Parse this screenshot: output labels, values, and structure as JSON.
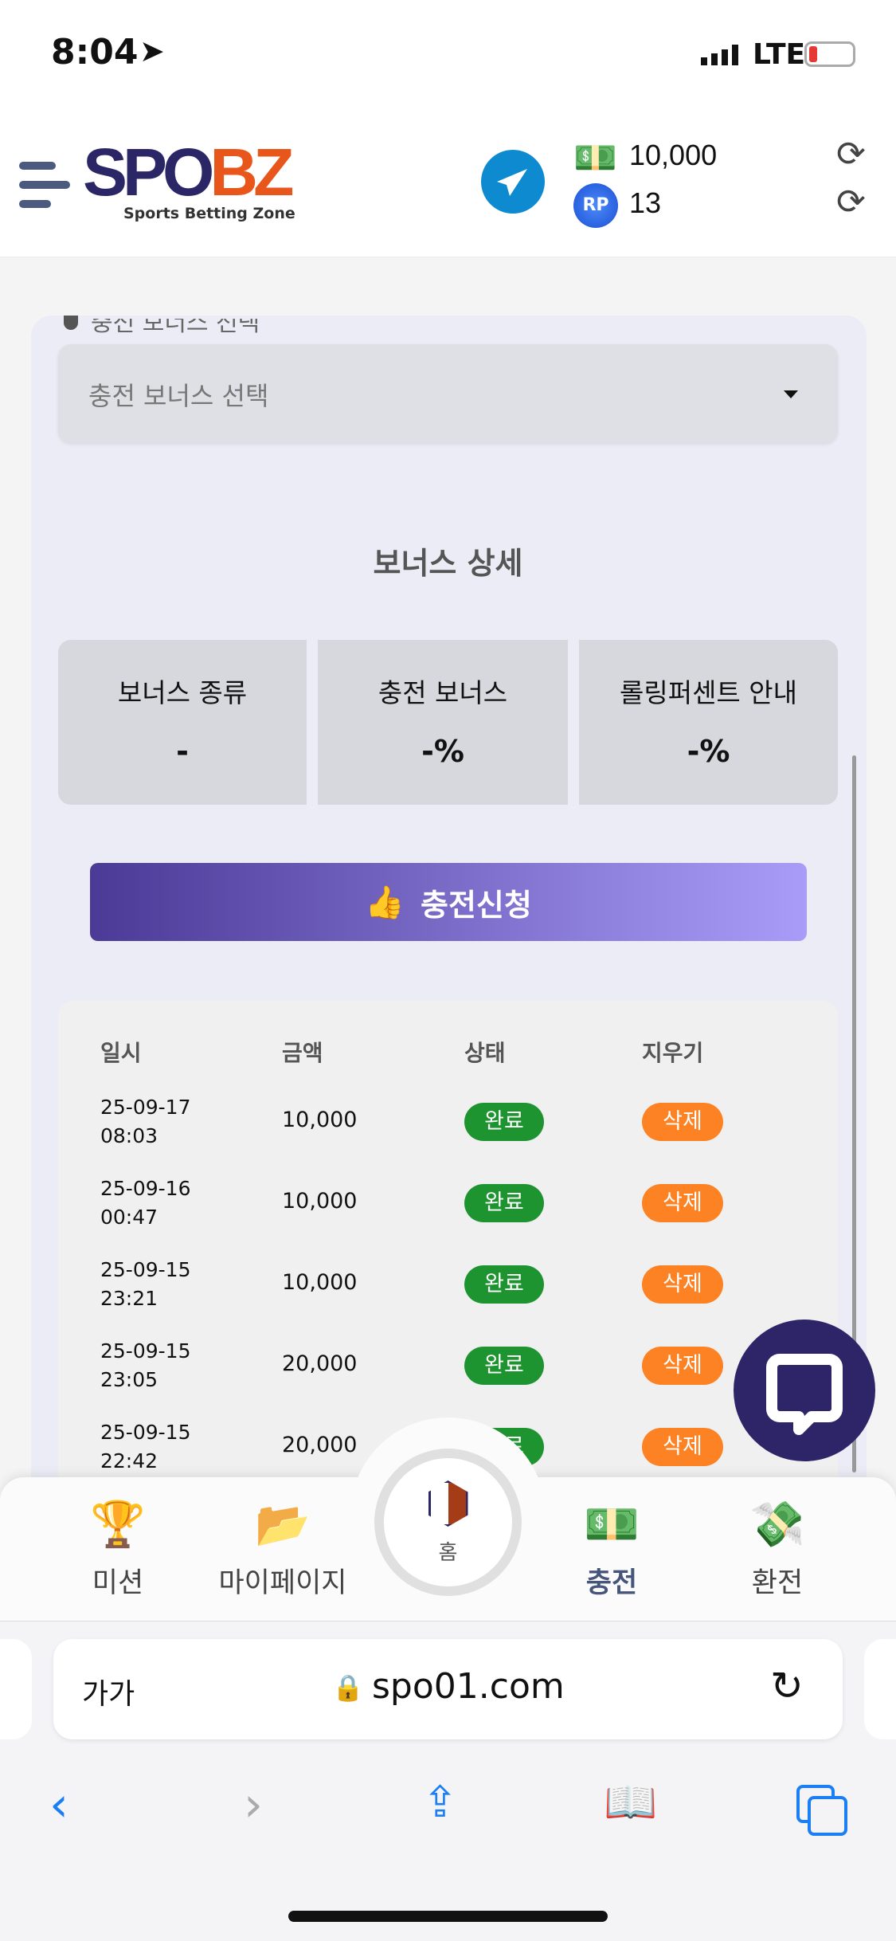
{
  "status_bar": {
    "time": "8:04",
    "network": "LTE",
    "battery_color": "#e53935"
  },
  "header": {
    "logo_left": "SPO",
    "logo_right": "BZ",
    "tagline": "Sports Betting Zone",
    "money": "10,000",
    "points_badge": "RP",
    "points": "13",
    "brand_colors": {
      "navy": "#2b2767",
      "orange": "#e8561b"
    }
  },
  "form": {
    "bonus_label": "충전 보너스 선택",
    "bonus_select": "충전 보너스 선택",
    "detail_title": "보너스 상세",
    "details": [
      {
        "label": "보너스 종류",
        "value": "-"
      },
      {
        "label": "충전 보너스",
        "value": "-%"
      },
      {
        "label": "롤링퍼센트 안내",
        "value": "-%"
      }
    ],
    "apply_button": "충전신청"
  },
  "history": {
    "headers": [
      "일시",
      "금액",
      "상태",
      "지우기"
    ],
    "rows": [
      {
        "date": "25-09-17",
        "time": "08:03",
        "amount": "10,000",
        "status": "완료",
        "delete": "삭제"
      },
      {
        "date": "25-09-16",
        "time": "00:47",
        "amount": "10,000",
        "status": "완료",
        "delete": "삭제"
      },
      {
        "date": "25-09-15",
        "time": "23:21",
        "amount": "10,000",
        "status": "완료",
        "delete": "삭제"
      },
      {
        "date": "25-09-15",
        "time": "23:05",
        "amount": "20,000",
        "status": "완료",
        "delete": "삭제"
      },
      {
        "date": "25-09-15",
        "time": "22:42",
        "amount": "20,000",
        "status": "완료",
        "delete": "삭제"
      }
    ]
  },
  "bottom_nav": {
    "items": [
      {
        "label": "미션",
        "icon": "trophy-icon"
      },
      {
        "label": "마이페이지",
        "icon": "folder-icon"
      },
      {
        "label": "홈",
        "icon": "home-logo-icon"
      },
      {
        "label": "충전",
        "icon": "deposit-icon",
        "active": true
      },
      {
        "label": "환전",
        "icon": "withdraw-icon"
      }
    ]
  },
  "browser": {
    "text_size": "가가",
    "url": "spo01.com"
  }
}
